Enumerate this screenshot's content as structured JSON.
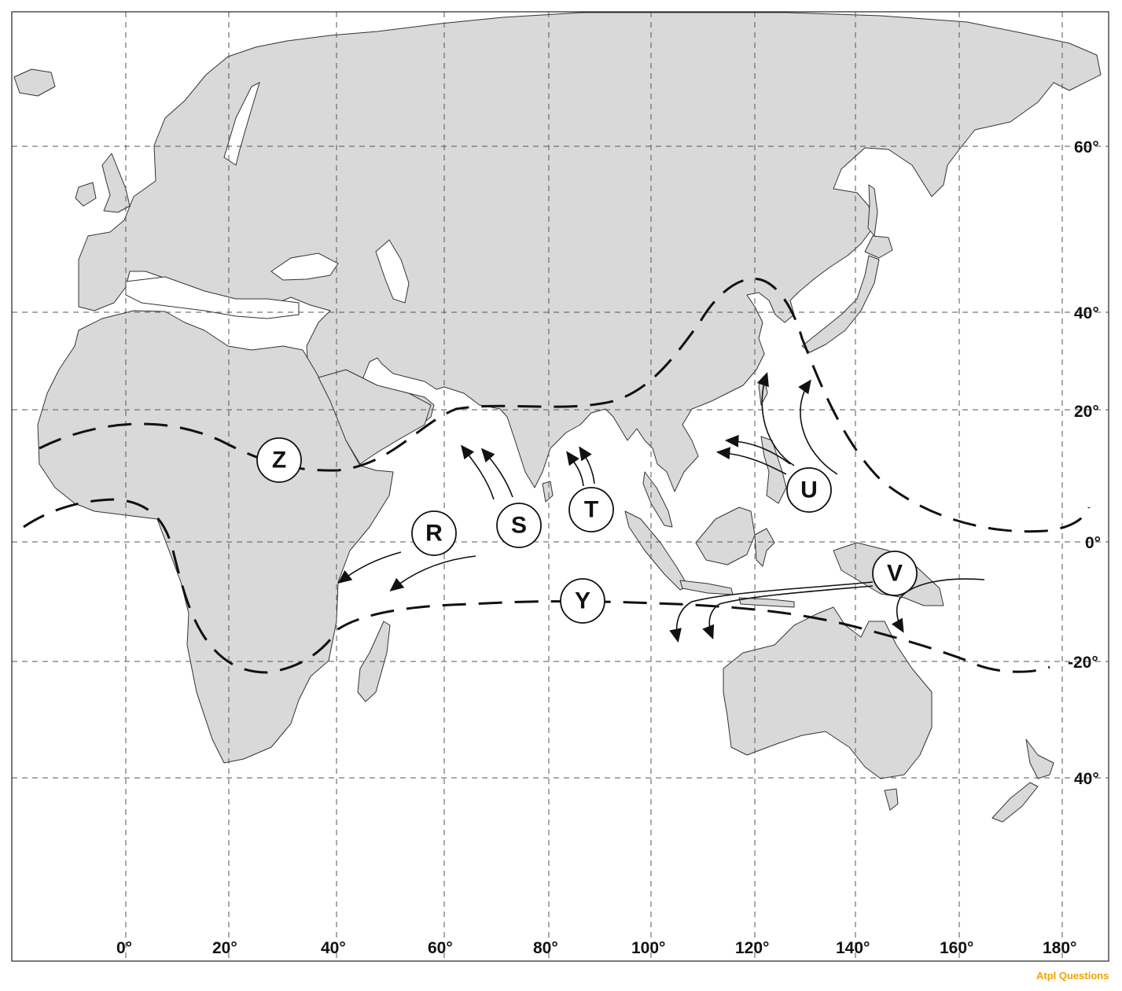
{
  "map": {
    "longitude_labels": [
      "0°",
      "20°",
      "40°",
      "60°",
      "80°",
      "100°",
      "120°",
      "140°",
      "160°",
      "180°"
    ],
    "latitude_labels": [
      "60°",
      "40°",
      "20°",
      "0°",
      "-20°",
      "40°"
    ],
    "markers": [
      {
        "id": "Z",
        "label": "Z"
      },
      {
        "id": "R",
        "label": "R"
      },
      {
        "id": "S",
        "label": "S"
      },
      {
        "id": "T",
        "label": "T"
      },
      {
        "id": "U",
        "label": "U"
      },
      {
        "id": "V",
        "label": "V"
      },
      {
        "id": "Y",
        "label": "Y"
      }
    ],
    "watermark": "Atpl Questions",
    "colors": {
      "land": "#d9d9d9",
      "ink": "#111111",
      "watermark": "#f0a400"
    }
  }
}
